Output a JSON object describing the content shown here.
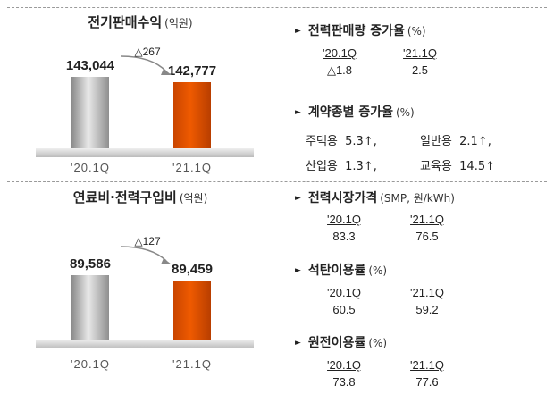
{
  "chart_data": [
    {
      "type": "bar",
      "title": "전기판매수익",
      "unit": "(억원)",
      "categories": [
        "'20.1Q",
        "'21.1Q"
      ],
      "values": [
        143044,
        142777
      ],
      "value_labels": [
        "143,044",
        "142,777"
      ],
      "change_label": "△267",
      "colors": [
        "#a9a9a9",
        "#ef5a00"
      ]
    },
    {
      "type": "bar",
      "title": "연료비·전력구입비",
      "unit": "(억원)",
      "categories": [
        "'20.1Q",
        "'21.1Q"
      ],
      "values": [
        89586,
        89459
      ],
      "value_labels": [
        "89,586",
        "89,459"
      ],
      "change_label": "△127",
      "colors": [
        "#a9a9a9",
        "#ef5a00"
      ]
    }
  ],
  "right": {
    "sales_growth": {
      "title": "전력판매량 증가율",
      "unit": "(%)",
      "cols": [
        {
          "label": "'20.1Q",
          "value": "△1.8"
        },
        {
          "label": "'21.1Q",
          "value": "2.5"
        }
      ]
    },
    "contract": {
      "title": "계약종별 증가율",
      "unit": "(%)",
      "rows": [
        [
          {
            "name": "주택용",
            "value": "5.3↑,"
          },
          {
            "name": "일반용",
            "value": "2.1↑,"
          }
        ],
        [
          {
            "name": "산업용",
            "value": "1.3↑,"
          },
          {
            "name": "교육용",
            "value": "14.5↑"
          }
        ]
      ]
    },
    "smp": {
      "title": "전력시장가격",
      "unit": "(SMP, 원/kWh)",
      "cols": [
        {
          "label": "'20.1Q",
          "value": "83.3"
        },
        {
          "label": "'21.1Q",
          "value": "76.5"
        }
      ]
    },
    "coal": {
      "title": "석탄이용률",
      "unit": "(%)",
      "cols": [
        {
          "label": "'20.1Q",
          "value": "60.5"
        },
        {
          "label": "'21.1Q",
          "value": "59.2"
        }
      ]
    },
    "nuclear": {
      "title": "원전이용률",
      "unit": "(%)",
      "cols": [
        {
          "label": "'20.1Q",
          "value": "73.8"
        },
        {
          "label": "'21.1Q",
          "value": "77.6"
        }
      ]
    }
  }
}
